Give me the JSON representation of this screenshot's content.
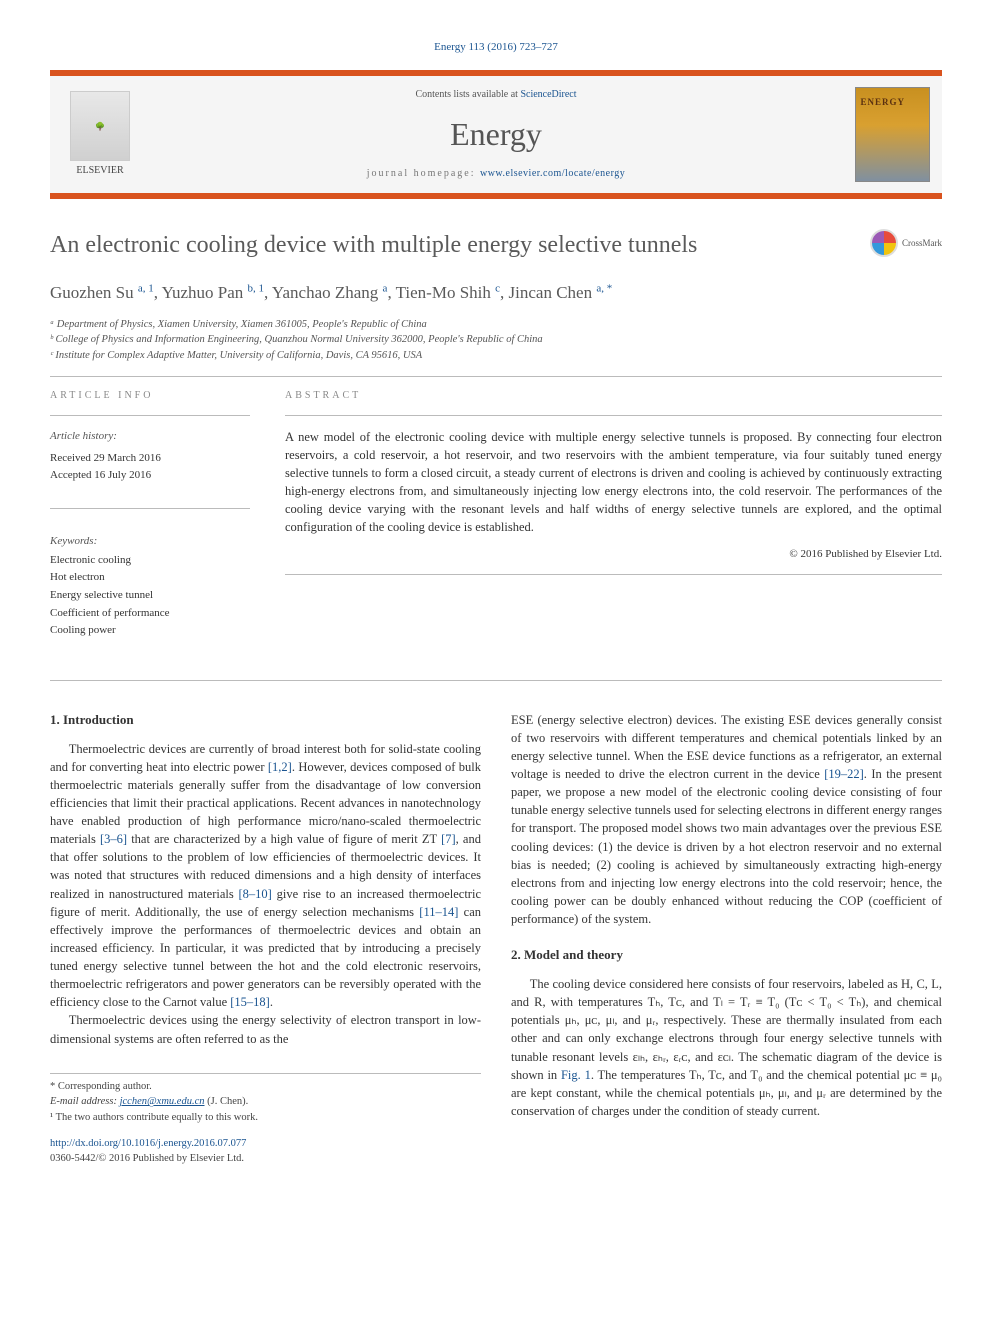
{
  "citation": "Energy 113 (2016) 723–727",
  "header": {
    "contents_prefix": "Contents lists available at ",
    "contents_link": "ScienceDirect",
    "journal_name": "Energy",
    "homepage_prefix": "journal homepage: ",
    "homepage_url": "www.elsevier.com/locate/energy",
    "publisher": "ELSEVIER",
    "cover_title": "ENERGY"
  },
  "crossmark": "CrossMark",
  "title": "An electronic cooling device with multiple energy selective tunnels",
  "authors_html": "Guozhen Su <sup>a, 1</sup>, Yuzhuo Pan <sup>b, 1</sup>, Yanchao Zhang <sup>a</sup>, Tien-Mo Shih <sup>c</sup>, Jincan Chen <sup>a, *</sup>",
  "affiliations": [
    "ᵃ Department of Physics, Xiamen University, Xiamen 361005, People's Republic of China",
    "ᵇ College of Physics and Information Engineering, Quanzhou Normal University 362000, People's Republic of China",
    "ᶜ Institute for Complex Adaptive Matter, University of California, Davis, CA 95616, USA"
  ],
  "article_info": {
    "header": "ARTICLE INFO",
    "history_label": "Article history:",
    "received": "Received 29 March 2016",
    "accepted": "Accepted 16 July 2016",
    "keywords_label": "Keywords:",
    "keywords": [
      "Electronic cooling",
      "Hot electron",
      "Energy selective tunnel",
      "Coefficient of performance",
      "Cooling power"
    ]
  },
  "abstract": {
    "header": "ABSTRACT",
    "text": "A new model of the electronic cooling device with multiple energy selective tunnels is proposed. By connecting four electron reservoirs, a cold reservoir, a hot reservoir, and two reservoirs with the ambient temperature, via four suitably tuned energy selective tunnels to form a closed circuit, a steady current of electrons is driven and cooling is achieved by continuously extracting high-energy electrons from, and simultaneously injecting low energy electrons into, the cold reservoir. The performances of the cooling device varying with the resonant levels and half widths of energy selective tunnels are explored, and the optimal configuration of the cooling device is established.",
    "copyright": "© 2016 Published by Elsevier Ltd."
  },
  "sections": {
    "intro_title": "1. Introduction",
    "intro_p1": "Thermoelectric devices are currently of broad interest both for solid-state cooling and for converting heat into electric power [1,2]. However, devices composed of bulk thermoelectric materials generally suffer from the disadvantage of low conversion efficiencies that limit their practical applications. Recent advances in nanotechnology have enabled production of high performance micro/nano-scaled thermoelectric materials [3–6] that are characterized by a high value of figure of merit ZT [7], and that offer solutions to the problem of low efficiencies of thermoelectric devices. It was noted that structures with reduced dimensions and a high density of interfaces realized in nanostructured materials [8–10] give rise to an increased thermoelectric figure of merit. Additionally, the use of energy selection mechanisms [11–14] can effectively improve the performances of thermoelectric devices and obtain an increased efficiency. In particular, it was predicted that by introducing a precisely tuned energy selective tunnel between the hot and the cold electronic reservoirs, thermoelectric refrigerators and power generators can be reversibly operated with the efficiency close to the Carnot value [15–18].",
    "intro_p2": "Thermoelectric devices using the energy selectivity of electron transport in low-dimensional systems are often referred to as the",
    "intro_p2_cont": "ESE (energy selective electron) devices. The existing ESE devices generally consist of two reservoirs with different temperatures and chemical potentials linked by an energy selective tunnel. When the ESE device functions as a refrigerator, an external voltage is needed to drive the electron current in the device [19–22]. In the present paper, we propose a new model of the electronic cooling device consisting of four tunable energy selective tunnels used for selecting electrons in different energy ranges for transport. The proposed model shows two main advantages over the previous ESE cooling devices: (1) the device is driven by a hot electron reservoir and no external bias is needed; (2) cooling is achieved by simultaneously extracting high-energy electrons from and injecting low energy electrons into the cold reservoir; hence, the cooling power can be doubly enhanced without reducing the COP (coefficient of performance) of the system.",
    "model_title": "2. Model and theory",
    "model_p1": "The cooling device considered here consists of four reservoirs, labeled as H, C, L, and R, with temperatures Tₕ, Tᴄ, and Tₗ = Tᵣ ≡ T₀ (Tᴄ < T₀ < Tₕ), and chemical potentials μₕ, μᴄ, μₗ, and μᵣ, respectively. These are thermally insulated from each other and can only exchange electrons through four energy selective tunnels with tunable resonant levels εₗₕ, εₕᵣ, εᵣᴄ, and εᴄₗ. The schematic diagram of the device is shown in Fig. 1. The temperatures Tₕ, Tᴄ, and T₀ and the chemical potential μᴄ ≡ μ₀ are kept constant, while the chemical potentials μₕ, μₗ, and μᵣ are determined by the conservation of charges under the condition of steady current."
  },
  "footer": {
    "corresponding": "* Corresponding author.",
    "email_label": "E-mail address: ",
    "email": "jcchen@xmu.edu.cn",
    "email_name": " (J. Chen).",
    "note1": "¹ The two authors contribute equally to this work.",
    "doi": "http://dx.doi.org/10.1016/j.energy.2016.07.077",
    "issn": "0360-5442/© 2016 Published by Elsevier Ltd."
  },
  "colors": {
    "accent_orange": "#d9531e",
    "link_blue": "#1a5490",
    "text_gray": "#5a5a5a",
    "background": "#ffffff",
    "header_bg": "#f5f5f5"
  }
}
